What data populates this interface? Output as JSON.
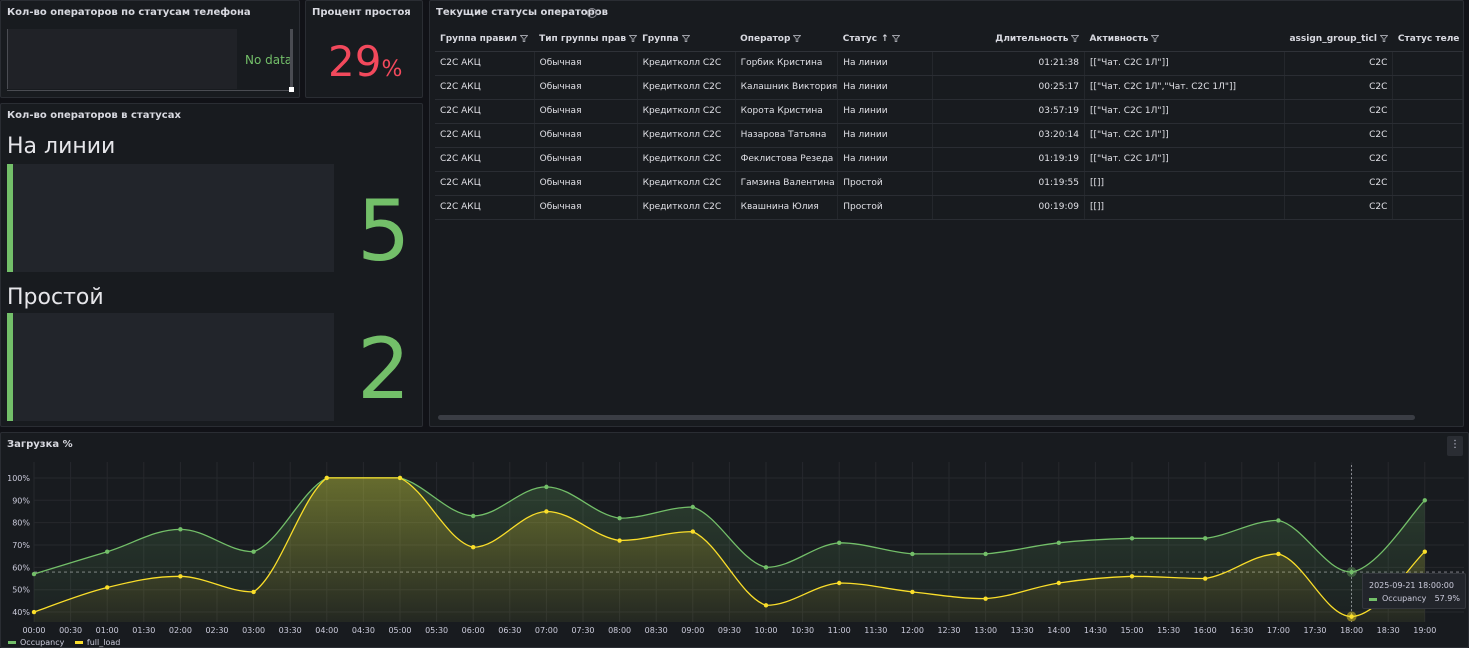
{
  "panel_phone_status": {
    "title": "Кол-во операторов по статусам телефона",
    "no_data": "No data"
  },
  "panel_idle_percent": {
    "title": "Процент простоя",
    "value": "29",
    "unit": "%"
  },
  "panel_status_counts": {
    "title": "Кол-во операторов в статусах",
    "stats": [
      {
        "label": "На линии",
        "value": "5"
      },
      {
        "label": "Простой",
        "value": "2"
      }
    ]
  },
  "panel_current": {
    "title": "Текущие статусы операторов",
    "info_icon": "info-icon",
    "columns": [
      "Группа правил",
      "Тип группы прав",
      "Группа",
      "Оператор",
      "Статус",
      "Длительность",
      "Активность",
      "assign_group_ticl",
      "Статус теле"
    ],
    "rows": [
      [
        "C2C АКЦ",
        "Обычная",
        "Кредитколл C2C",
        "Горбик Кристина",
        "На линии",
        "01:21:38",
        "[[\"Чат. C2C 1Л\"]]",
        "C2C",
        ""
      ],
      [
        "C2C АКЦ",
        "Обычная",
        "Кредитколл C2C",
        "Калашник Виктория",
        "На линии",
        "00:25:17",
        "[[\"Чат. C2C 1Л\",\"Чат. C2C 1Л\"]]",
        "C2C",
        ""
      ],
      [
        "C2C АКЦ",
        "Обычная",
        "Кредитколл C2C",
        "Корота Кристина",
        "На линии",
        "03:57:19",
        "[[\"Чат. C2C 1Л\"]]",
        "C2C",
        ""
      ],
      [
        "C2C АКЦ",
        "Обычная",
        "Кредитколл C2C",
        "Назарова Татьяна",
        "На линии",
        "03:20:14",
        "[[\"Чат. C2C 1Л\"]]",
        "C2C",
        ""
      ],
      [
        "C2C АКЦ",
        "Обычная",
        "Кредитколл C2C",
        "Феклистова Резеда",
        "На линии",
        "01:19:19",
        "[[\"Чат. C2C 1Л\"]]",
        "C2C",
        ""
      ],
      [
        "C2C АКЦ",
        "Обычная",
        "Кредитколл C2C",
        "Гамзина Валентина",
        "Простой",
        "01:19:55",
        "[[]]",
        "C2C",
        ""
      ],
      [
        "C2C АКЦ",
        "Обычная",
        "Кредитколл C2C",
        "Квашнина Юлия",
        "Простой",
        "00:19:09",
        "[[]]",
        "C2C",
        ""
      ]
    ]
  },
  "panel_load": {
    "title": "Загрузка %",
    "menu_icon": "kebab-menu-icon",
    "tooltip": {
      "time": "2025-09-21 18:00:00",
      "series": "Occupancy",
      "value": "57.9%"
    },
    "legend": [
      "Occupancy",
      "full_load"
    ]
  },
  "chart_data": {
    "type": "area",
    "x": [
      "00:00",
      "01:00",
      "02:00",
      "03:00",
      "04:00",
      "05:00",
      "06:00",
      "07:00",
      "08:00",
      "09:00",
      "10:00",
      "11:00",
      "12:00",
      "13:00",
      "14:00",
      "15:00",
      "16:00",
      "17:00",
      "18:00",
      "19:00"
    ],
    "xticks": [
      "00:00",
      "00:30",
      "01:00",
      "01:30",
      "02:00",
      "02:30",
      "03:00",
      "03:30",
      "04:00",
      "04:30",
      "05:00",
      "05:30",
      "06:00",
      "06:30",
      "07:00",
      "07:30",
      "08:00",
      "08:30",
      "09:00",
      "09:30",
      "10:00",
      "10:30",
      "11:00",
      "11:30",
      "12:00",
      "12:30",
      "13:00",
      "13:30",
      "14:00",
      "14:30",
      "15:00",
      "15:30",
      "16:00",
      "16:30",
      "17:00",
      "17:30",
      "18:00",
      "18:30",
      "19:00"
    ],
    "yticks": [
      "40%",
      "50%",
      "60%",
      "70%",
      "80%",
      "90%",
      "100%"
    ],
    "ylim": [
      36,
      104
    ],
    "series": [
      {
        "name": "Occupancy",
        "color": "#73bf69",
        "values": [
          57,
          67,
          77,
          67,
          100,
          100,
          83,
          96,
          82,
          87,
          60,
          71,
          66,
          66,
          71,
          73,
          73,
          81,
          57.9,
          90
        ]
      },
      {
        "name": "full_load",
        "color": "#fade2a",
        "values": [
          40,
          51,
          56,
          49,
          100,
          100,
          69,
          85,
          72,
          76,
          43,
          53,
          49,
          46,
          53,
          56,
          55,
          66,
          38,
          67
        ]
      }
    ],
    "threshold": 57.9,
    "grid": true,
    "legend_position": "bottom-left"
  }
}
